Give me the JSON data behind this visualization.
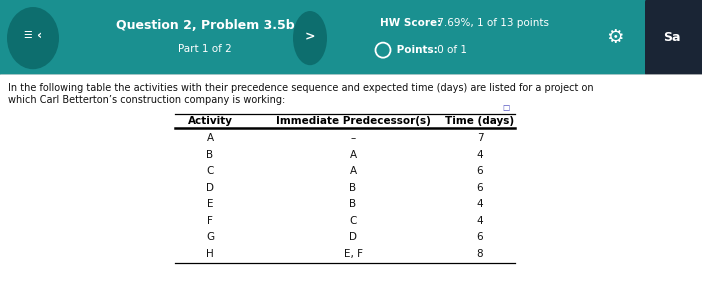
{
  "header_bg_color": "#1a9090",
  "header_title": "Question 2, Problem 3.5b",
  "header_subtitle": "Part 1 of 2",
  "hw_score_label": "HW Score:",
  "hw_score_value": " 7.69%, 1 of 13 points",
  "points_label": " Points:",
  "points_value": " 0 of 1",
  "save_label": "Sa",
  "body_text_line1": "In the following table the activities with their precedence sequence and expected time (days) are listed for a project on",
  "body_text_line2": "which Carl Betterton’s construction company is working:",
  "table_headers": [
    "Activity",
    "Immediate Predecessor(s)",
    "Time (days)"
  ],
  "table_rows": [
    [
      "A",
      "–",
      "7"
    ],
    [
      "B",
      "A",
      "4"
    ],
    [
      "C",
      "A",
      "6"
    ],
    [
      "D",
      "B",
      "6"
    ],
    [
      "E",
      "B",
      "4"
    ],
    [
      "F",
      "C",
      "4"
    ],
    [
      "G",
      "D",
      "6"
    ],
    [
      "H",
      "E, F",
      "8"
    ]
  ],
  "body_bg": "#ffffff",
  "body_text_color": "#111111",
  "table_header_color": "#000000",
  "table_row_color": "#111111",
  "header_title_color": "#ffffff",
  "header_sub_color": "#ffffff",
  "dark_circle_color": "#0d6e6e",
  "save_bg_color": "#1a2535",
  "gear_color": "#ffffff",
  "expand_icon_color": "#4444bb"
}
